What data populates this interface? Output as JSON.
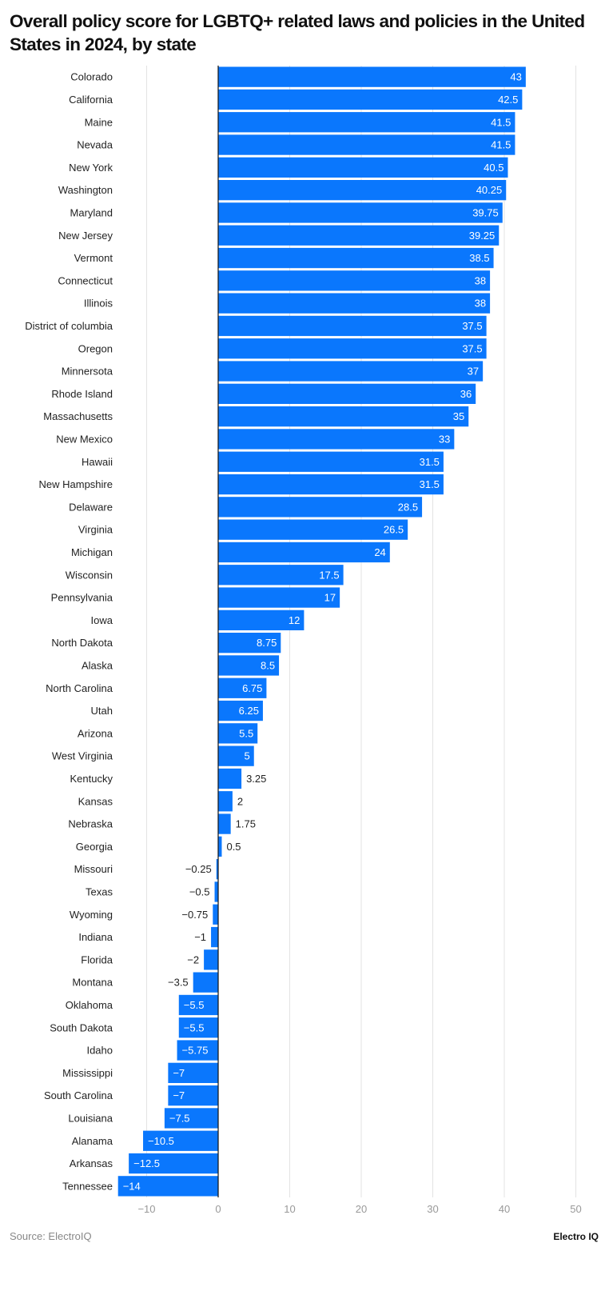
{
  "chart_data": {
    "type": "bar",
    "orientation": "horizontal",
    "title": "Overall policy score for LGBTQ+ related laws and policies in the United States in 2024, by state",
    "categories": [
      "Colorado",
      "California",
      "Maine",
      "Nevada",
      "New York",
      "Washington",
      "Maryland",
      "New Jersey",
      "Vermont",
      "Connecticut",
      "Illinois",
      "District of columbia",
      "Oregon",
      "Minnersota",
      "Rhode Island",
      "Massachusetts",
      "New Mexico",
      "Hawaii",
      "New Hampshire",
      "Delaware",
      "Virginia",
      "Michigan",
      "Wisconsin",
      "Pennsylvania",
      "Iowa",
      "North Dakota",
      "Alaska",
      "North Carolina",
      "Utah",
      "Arizona",
      "West Virginia",
      "Kentucky",
      "Kansas",
      "Nebraska",
      "Georgia",
      "Missouri",
      "Texas",
      "Wyoming",
      "Indiana",
      "Florida",
      "Montana",
      "Oklahoma",
      "South Dakota",
      "Idaho",
      "Mississippi",
      "South Carolina",
      "Louisiana",
      "Alanama",
      "Arkansas",
      "Tennessee"
    ],
    "values": [
      43,
      42.5,
      41.5,
      41.5,
      40.5,
      40.25,
      39.75,
      39.25,
      38.5,
      38,
      38,
      37.5,
      37.5,
      37,
      36,
      35,
      33,
      31.5,
      31.5,
      28.5,
      26.5,
      24,
      17.5,
      17,
      12,
      8.75,
      8.5,
      6.75,
      6.25,
      5.5,
      5,
      3.25,
      2,
      1.75,
      0.5,
      -0.25,
      -0.5,
      -0.75,
      -1,
      -2,
      -3.5,
      -5.5,
      -5.5,
      -5.75,
      -7,
      -7,
      -7.5,
      -10.5,
      -12.5,
      -14
    ],
    "xlim": [
      -14,
      50
    ],
    "xticks": [
      -10,
      0,
      10,
      20,
      30,
      40,
      50
    ],
    "xlabel": "",
    "ylabel": "",
    "grid": true,
    "bar_color": "#0a77fd"
  },
  "footer": {
    "source": "Source: ElectroIQ",
    "logo": "Electro IQ"
  }
}
